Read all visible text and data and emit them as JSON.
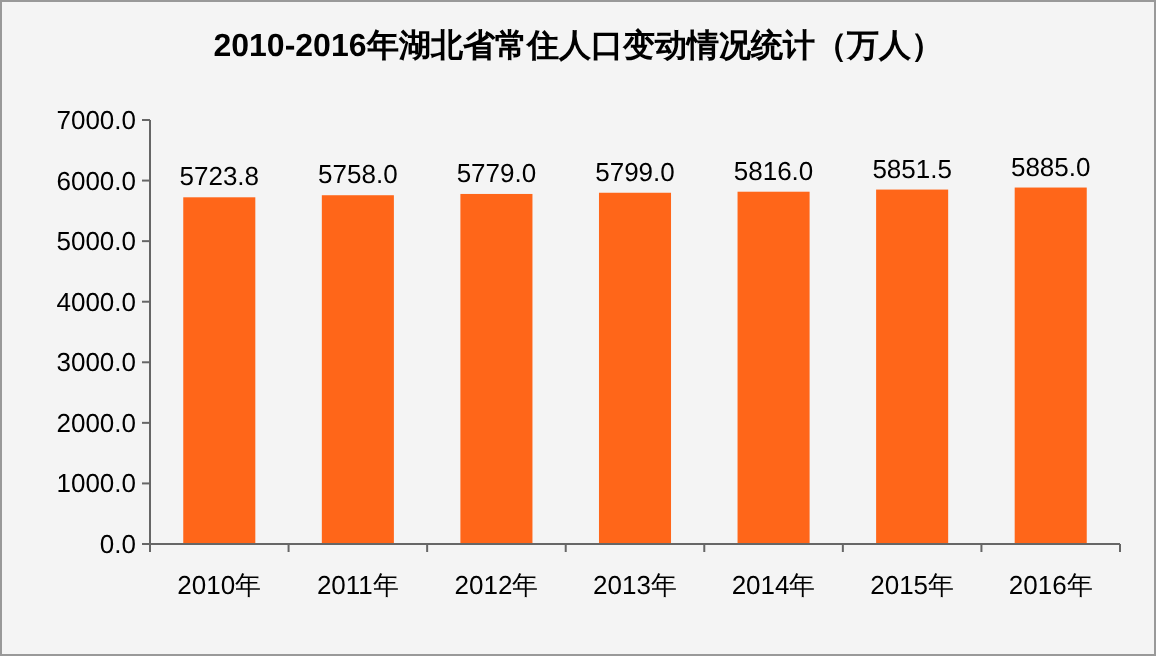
{
  "chart_data": {
    "type": "bar",
    "title": "2010-2016年湖北省常住人口变动情况统计（万人）",
    "categories": [
      "2010年",
      "2011年",
      "2012年",
      "2013年",
      "2014年",
      "2015年",
      "2016年"
    ],
    "values": [
      5723.8,
      5758.0,
      5779.0,
      5799.0,
      5816.0,
      5851.5,
      5885.0
    ],
    "value_labels": [
      "5723.8",
      "5758.0",
      "5779.0",
      "5799.0",
      "5816.0",
      "5851.5",
      "5885.0"
    ],
    "color": "#ff6619",
    "ylim": [
      0,
      7000
    ],
    "yticks": [
      {
        "value": 0,
        "label": "0.0"
      },
      {
        "value": 1000,
        "label": "1000.0"
      },
      {
        "value": 2000,
        "label": "2000.0"
      },
      {
        "value": 3000,
        "label": "3000.0"
      },
      {
        "value": 4000,
        "label": "4000.0"
      },
      {
        "value": 5000,
        "label": "5000.0"
      },
      {
        "value": 6000,
        "label": "6000.0"
      },
      {
        "value": 7000,
        "label": "7000.0"
      }
    ],
    "grid": false
  }
}
